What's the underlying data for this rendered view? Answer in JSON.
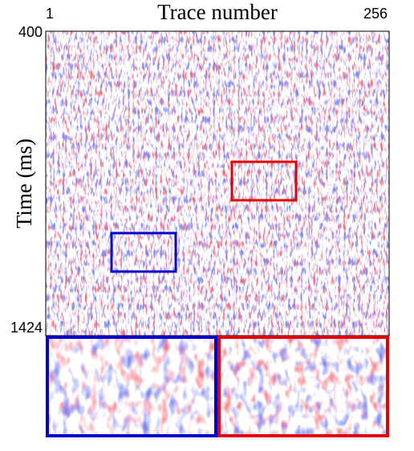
{
  "chart_data": {
    "type": "image",
    "xlabel": "Trace number",
    "ylabel": "Time (ms)",
    "xlim": [
      1,
      256
    ],
    "xticks": [
      1,
      256
    ],
    "ylim": [
      1424,
      400
    ],
    "yticks": [
      400,
      1424
    ]
  }
}
